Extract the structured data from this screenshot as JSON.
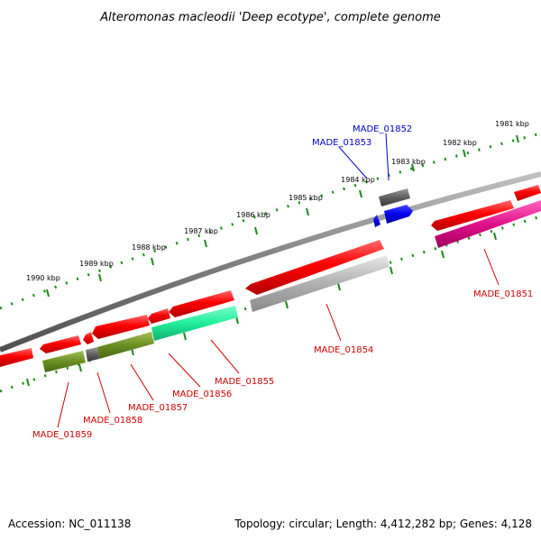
{
  "title": "Alteromonas macleodii 'Deep ecotype', complete genome",
  "footer": {
    "accession": "Accession: NC_011138",
    "summary": "Topology: circular; Length: 4,412,282 bp; Genes: 4,128"
  },
  "colors": {
    "backbone": "#808080",
    "scale_dots": "#1a8a1a",
    "label_forward": "#cc0000",
    "label_reverse": "#0000cc"
  },
  "scale_labels": [
    "1981 kbp",
    "1982 kbp",
    "1983 kbp",
    "1984 kbp",
    "1985 kbp",
    "1986 kbp",
    "1987 kbp",
    "1988 kbp",
    "1989 kbp",
    "1990 kbp"
  ],
  "genes": [
    {
      "id": "MADE_01851",
      "strand": "+",
      "color": "#e0118a"
    },
    {
      "id": "MADE_01852",
      "strand": "-",
      "color": "#606060"
    },
    {
      "id": "MADE_01853",
      "strand": "-",
      "color": "#0000ee"
    },
    {
      "id": "MADE_01854",
      "strand": "+",
      "color": "#b0b0b0"
    },
    {
      "id": "MADE_01855",
      "strand": "+",
      "color": "#22ee99"
    },
    {
      "id": "MADE_01856",
      "strand": "+",
      "color": "#6b8e23"
    },
    {
      "id": "MADE_01857",
      "strand": "+",
      "color": "#6b8e23"
    },
    {
      "id": "MADE_01858",
      "strand": "+",
      "color": "#707070"
    },
    {
      "id": "MADE_01859",
      "strand": "+",
      "color": "#6b8e23"
    }
  ]
}
